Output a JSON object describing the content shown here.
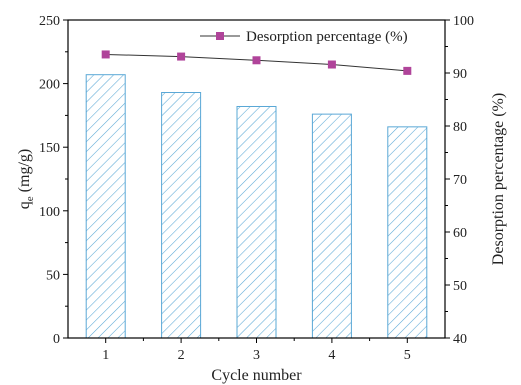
{
  "chart_data": {
    "type": "bar",
    "categories": [
      "1",
      "2",
      "3",
      "4",
      "5"
    ],
    "series": [
      {
        "name": "",
        "type": "bar",
        "axis": "left",
        "values": [
          207,
          193,
          182,
          176,
          166
        ],
        "color": "#5aa8d6"
      },
      {
        "name": "Desorption percentage (%)",
        "type": "line",
        "axis": "right",
        "values": [
          93.5,
          93.1,
          92.4,
          91.6,
          90.4
        ],
        "color": "#b0449a"
      }
    ],
    "xlabel": "Cycle number",
    "ylabel_main": "q",
    "ylabel_sub": "e",
    "ylabel_unit": " (mg/g)",
    "y2label": "Desorption percentage (%)",
    "ylim": [
      0,
      250
    ],
    "yticks": [
      0,
      50,
      100,
      150,
      200,
      250
    ],
    "y2lim": [
      40,
      100
    ],
    "y2ticks": [
      40,
      50,
      60,
      70,
      80,
      90,
      100
    ],
    "grid": false,
    "legend": "top-right",
    "bar_pattern": "diagonal-hatch"
  }
}
